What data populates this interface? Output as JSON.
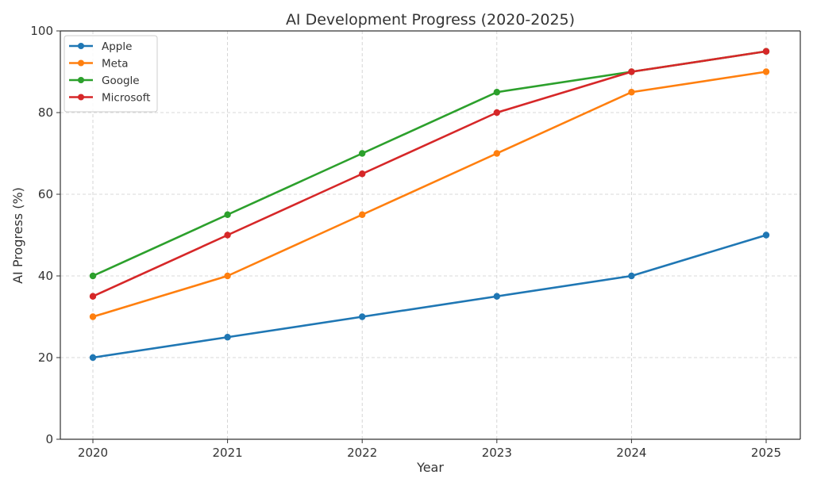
{
  "chart_data": {
    "type": "line",
    "title": "AI Development Progress (2020-2025)",
    "xlabel": "Year",
    "ylabel": "AI Progress (%)",
    "x": [
      2020,
      2021,
      2022,
      2023,
      2024,
      2025
    ],
    "ylim": [
      0,
      100
    ],
    "yticks": [
      0,
      20,
      40,
      60,
      80,
      100
    ],
    "grid": true,
    "legend_position": "top-left",
    "series": [
      {
        "name": "Apple",
        "values": [
          20,
          25,
          30,
          35,
          40,
          50
        ],
        "color": "#1f77b4"
      },
      {
        "name": "Meta",
        "values": [
          30,
          40,
          55,
          70,
          85,
          90
        ],
        "color": "#ff7f0e"
      },
      {
        "name": "Google",
        "values": [
          40,
          55,
          70,
          85,
          90,
          95
        ],
        "color": "#2ca02c"
      },
      {
        "name": "Microsoft",
        "values": [
          35,
          50,
          65,
          80,
          90,
          95
        ],
        "color": "#d62728"
      }
    ]
  }
}
